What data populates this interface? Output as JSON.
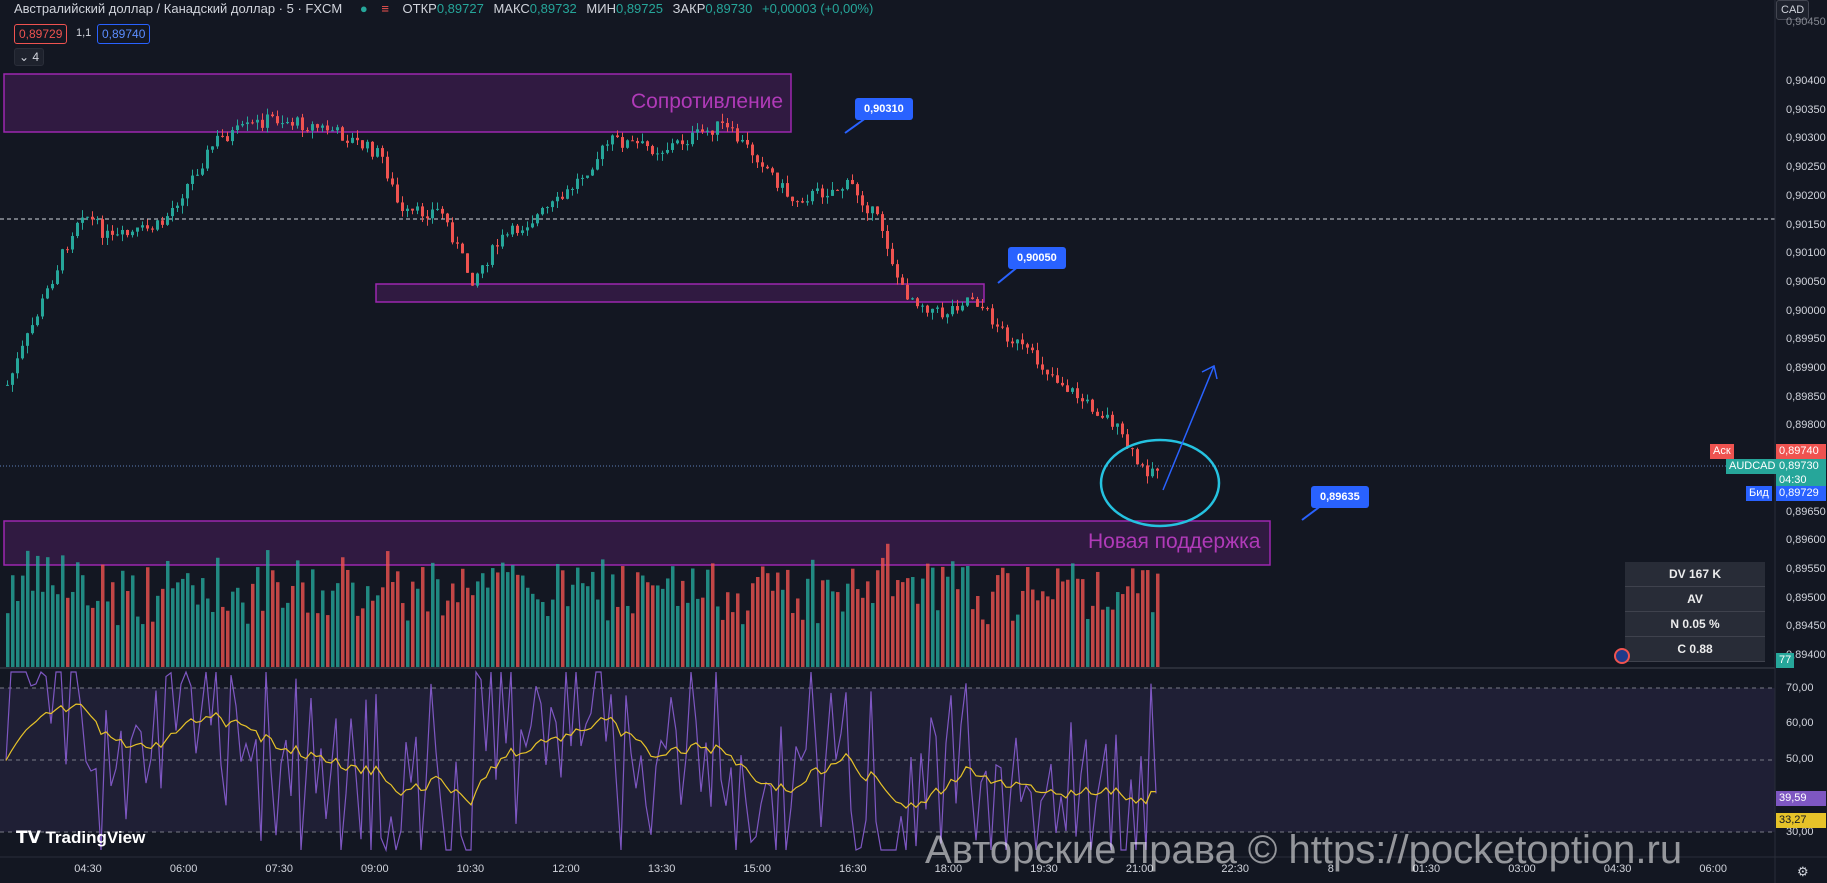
{
  "header": {
    "symbol_title": "Австралийский доллар / Канадский доллар · 5 · FXCM",
    "ohlc": [
      {
        "key": "ОТКР",
        "value": "0,89727"
      },
      {
        "key": "МАКС",
        "value": "0,89732"
      },
      {
        "key": "МИН",
        "value": "0,89725"
      },
      {
        "key": "ЗАКР",
        "value": "0,89730"
      }
    ],
    "change": "+0,00003 (+0,00%)",
    "sell_price": "0,89729",
    "spread": "1,1",
    "buy_price": "0,89740",
    "indicator_count": "4",
    "currency_button": "CAD"
  },
  "colors": {
    "bull": "#26a69a",
    "bear": "#ef5350",
    "zone": "#9c27b0",
    "badge": "#2962ff",
    "rsi": "#7e57c2",
    "rsi_ma": "#e6c229"
  },
  "price_axis": {
    "ticks": [
      "0,90400",
      "0,90350",
      "0,90300",
      "0,90250",
      "0,90200",
      "0,90150",
      "0,90100",
      "0,90050",
      "0,90000",
      "0,89950",
      "0,89900",
      "0,89850",
      "0,89800",
      "0,89750",
      "0,89700",
      "0,89650",
      "0,89600",
      "0,89550",
      "0,89500",
      "0,89450",
      "0,89400"
    ],
    "top_value": "0,90450"
  },
  "price_labels": {
    "ask_label": "Аск",
    "ask_value": "0,89740",
    "symbol_label": "AUDCAD",
    "last_value": "0,89730",
    "countdown": "04:30",
    "bid_label": "Бид",
    "bid_value": "0,89729",
    "volume_value": "77"
  },
  "annotations": {
    "resistance_label": "Сопротивление",
    "support_label": "Новая поддержка",
    "badge_top": "0,90310",
    "badge_mid": "0,90050",
    "badge_low": "0,89635"
  },
  "stats_table": [
    "DV 167 K",
    "AV",
    "N 0.05 %",
    "C  0.88"
  ],
  "rsi_axis": {
    "ticks": [
      "70,00",
      "60,00",
      "50,00",
      "30,00"
    ],
    "rsi_value": "39,59",
    "ma_value": "33,27"
  },
  "time_axis": [
    "04:30",
    "06:00",
    "07:30",
    "09:00",
    "10:30",
    "12:00",
    "13:30",
    "15:00",
    "16:30",
    "18:00",
    "19:30",
    "21:00",
    "22:30",
    "8",
    "01:30",
    "03:00",
    "04:30",
    "06:00"
  ],
  "branding": {
    "logo": "TradingView",
    "watermark": "Авторские права © https://pocketoption.ru"
  }
}
